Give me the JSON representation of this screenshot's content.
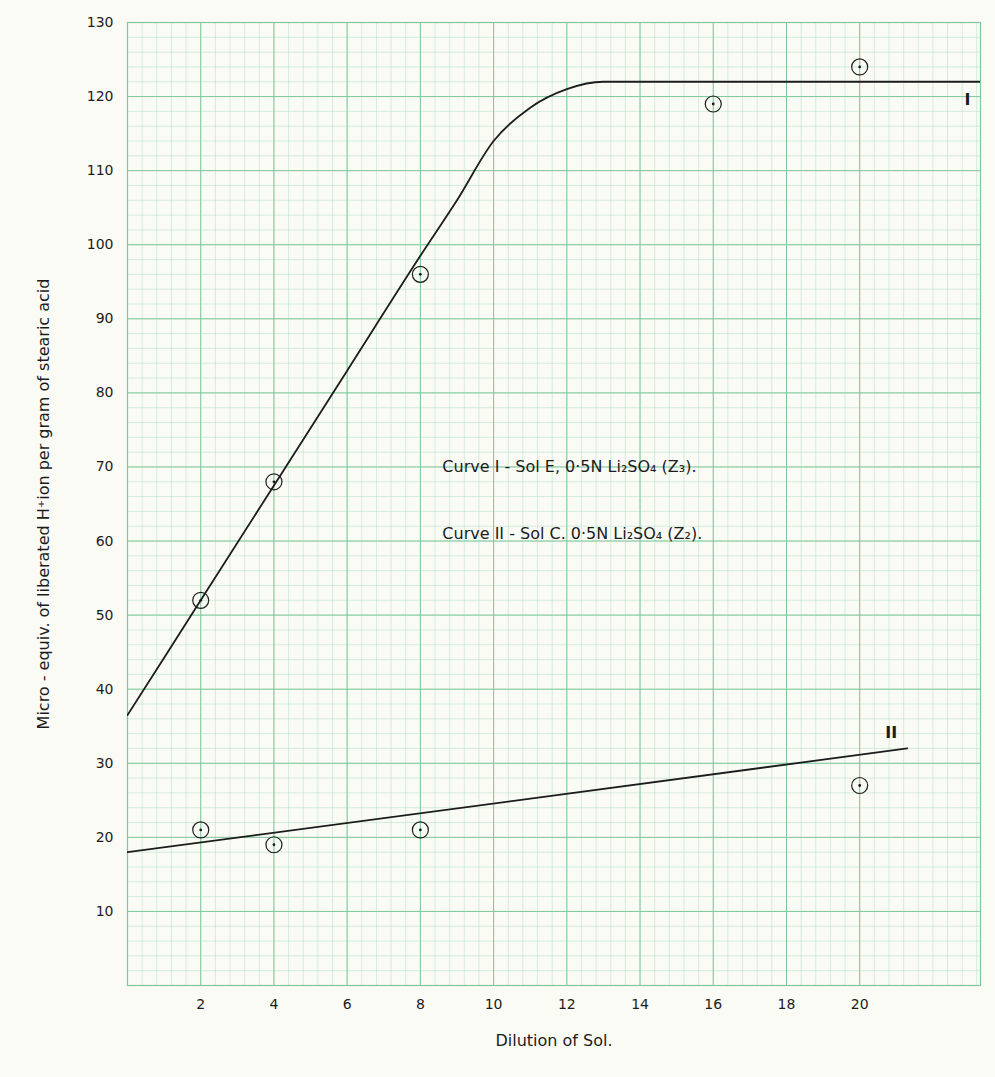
{
  "chart_data": {
    "type": "scatter",
    "x_label": "Dilution of Sol.",
    "y_label": "Micro - equiv. of liberated H⁺ion per gram of stearic acid",
    "xlim": [
      0,
      23.3
    ],
    "ylim": [
      0,
      130
    ],
    "xticks": [
      2,
      4,
      6,
      8,
      10,
      12,
      14,
      16,
      18,
      20
    ],
    "yticks": [
      10,
      20,
      30,
      40,
      50,
      60,
      70,
      80,
      90,
      100,
      110,
      120,
      130
    ],
    "grid": true,
    "annotations": [
      {
        "text": "Curve I - Sol E, 0·5N Li₂SO₄ (Z₃).",
        "x": 8.6,
        "y": 70
      },
      {
        "text": "Curve II - Sol C. 0·5N Li₂SO₄ (Z₂).",
        "x": 8.6,
        "y": 61
      }
    ],
    "series": [
      {
        "name": "I",
        "color": "#1c1c1c",
        "marker": "circle",
        "x": [
          2,
          4,
          8,
          16,
          20
        ],
        "values": [
          52,
          68,
          96,
          119,
          124
        ],
        "curve_x": [
          0,
          2,
          4,
          6,
          8,
          9,
          10,
          11,
          12,
          13,
          23.3
        ],
        "curve_values": [
          36.5,
          52,
          67.5,
          83,
          98.5,
          106,
          114,
          118.5,
          121,
          122,
          122
        ]
      },
      {
        "name": "II",
        "color": "#1c1c1c",
        "marker": "circle",
        "x": [
          2,
          4,
          8,
          20
        ],
        "values": [
          21,
          19,
          21,
          27
        ],
        "curve_x": [
          0,
          21.3
        ],
        "curve_values": [
          18,
          32
        ]
      }
    ]
  }
}
